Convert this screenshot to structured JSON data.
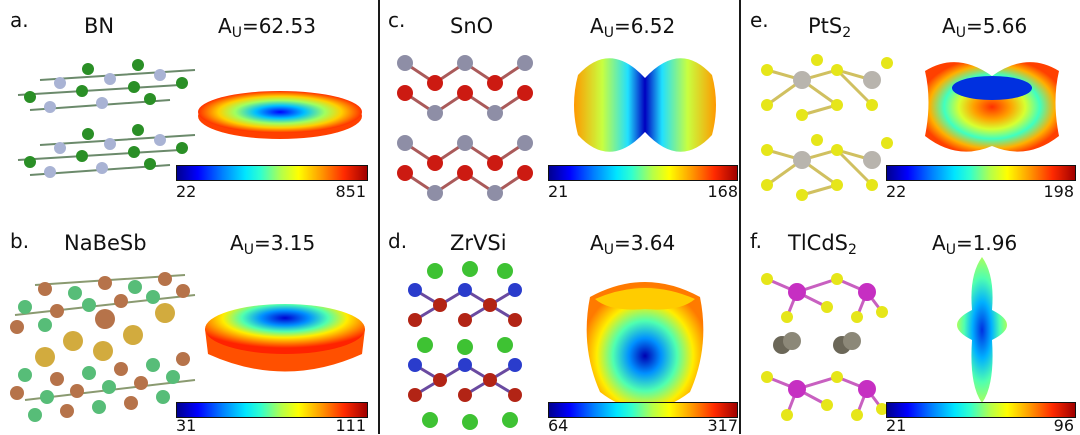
{
  "panels": [
    {
      "letter": "a.",
      "material": "BN",
      "material_sub": "",
      "au_label": "A",
      "au_sub": "U",
      "au_value": "=62.53",
      "cbar_min": "22",
      "cbar_max": "851"
    },
    {
      "letter": "b.",
      "material": "NaBeSb",
      "material_sub": "",
      "au_label": "A",
      "au_sub": "U",
      "au_value": "=3.15",
      "cbar_min": "31",
      "cbar_max": "111"
    },
    {
      "letter": "c.",
      "material": "SnO",
      "material_sub": "",
      "au_label": "A",
      "au_sub": "U",
      "au_value": "=6.52",
      "cbar_min": "21",
      "cbar_max": "168"
    },
    {
      "letter": "d.",
      "material": "ZrVSi",
      "material_sub": "",
      "au_label": "A",
      "au_sub": "U",
      "au_value": "=3.64",
      "cbar_min": "64",
      "cbar_max": "317"
    },
    {
      "letter": "e.",
      "material": "PtS",
      "material_sub": "2",
      "au_label": "A",
      "au_sub": "U",
      "au_value": "=5.66",
      "cbar_min": "22",
      "cbar_max": "198"
    },
    {
      "letter": "f.",
      "material": "TlCdS",
      "material_sub": "2",
      "au_label": "A",
      "au_sub": "U",
      "au_value": "=1.96",
      "cbar_min": "21",
      "cbar_max": "96"
    }
  ],
  "colors": {
    "B": "#a9b3d4",
    "N": "#2a8f26",
    "Na": "#d2ab3e",
    "Be": "#57bd78",
    "Sb": "#b6734a",
    "Sn": "#8e8ea6",
    "O": "#cc1a12",
    "Zr": "#3ec233",
    "V": "#b22415",
    "Si": "#2a3ccc",
    "Pt": "#b8b4ad",
    "S": "#e6e619",
    "Tl": "#6b6758",
    "Cd": "#c62fc2"
  }
}
